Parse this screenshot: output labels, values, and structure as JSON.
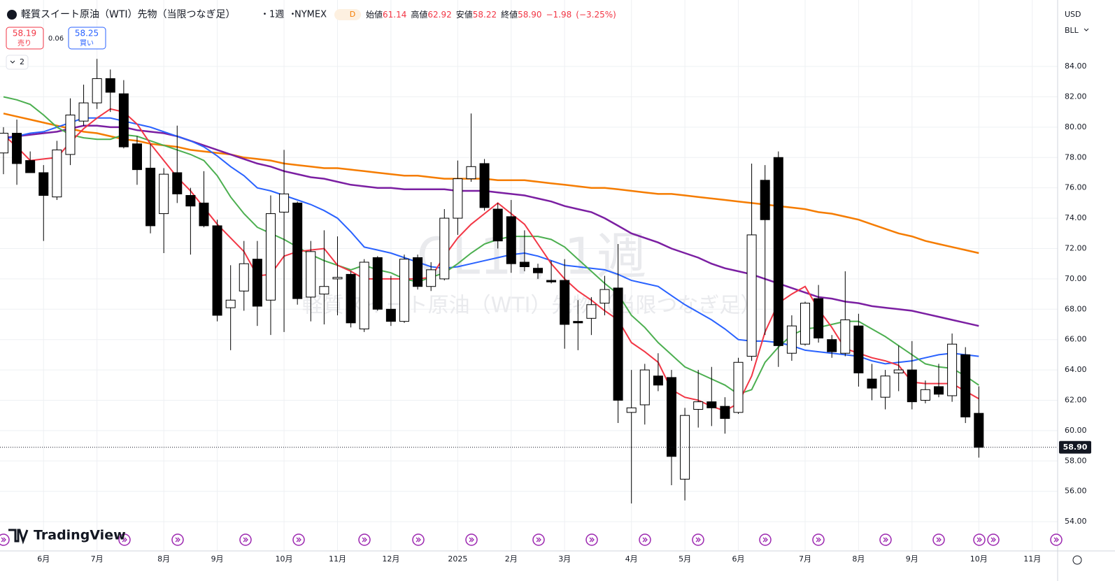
{
  "chart_data": {
    "type": "candlestick",
    "title": "軽質スイート原油（WTI）先物（当限つなぎ足）",
    "interval": "1週",
    "exchange": "NYMEX",
    "badge": "D",
    "ohlc_header": [
      {
        "label": "始値",
        "value": "61.14"
      },
      {
        "label": "高値",
        "value": "62.92"
      },
      {
        "label": "安値",
        "value": "58.22"
      },
      {
        "label": "終値",
        "value": "58.90"
      }
    ],
    "change": "−1.98",
    "change_pct": "(−3.25%)",
    "sell_price": "58.19",
    "sell_label": "売り",
    "spread": "0.06",
    "buy_price": "58.25",
    "buy_label": "買い",
    "indicators_count": "2",
    "currency": "USD",
    "unit": "BLL",
    "watermark": "CL1!, 1週",
    "brand": "TradingView",
    "last_price": {
      "value": 58.9,
      "label": "58.90"
    },
    "up_color": "#ffffff",
    "down_color": "#000000",
    "grid": true,
    "open": [
      78.3,
      79.6,
      77.8,
      77.0,
      75.4,
      78.2,
      80.4,
      81.6,
      83.2,
      82.2,
      78.9,
      77.3,
      74.3,
      77.0,
      75.5,
      75.0,
      73.5,
      68.1,
      69.2,
      71.3,
      68.6,
      74.4,
      75.0,
      68.8,
      69.0,
      70.0,
      70.3,
      66.7,
      71.4,
      68.0,
      67.2,
      71.4,
      69.5,
      70.0,
      74.0,
      76.6,
      77.6,
      74.6,
      74.1,
      71.1,
      70.7,
      69.9,
      69.9,
      67.2,
      67.4,
      68.4,
      69.4,
      61.2,
      61.7,
      63.6,
      63.5,
      56.8,
      61.4,
      61.9,
      61.6,
      61.2,
      64.9,
      76.5,
      78.0,
      65.1,
      65.7,
      68.7,
      66.0,
      65.1,
      66.9,
      63.4,
      62.2,
      63.8,
      64.0,
      62.0,
      62.9,
      62.3,
      65.0,
      61.14
    ],
    "high": [
      80.0,
      80.5,
      78.4,
      77.5,
      79.1,
      81.9,
      82.8,
      84.5,
      83.8,
      83.1,
      79.4,
      78.9,
      77.3,
      80.1,
      76.0,
      77.1,
      73.9,
      70.9,
      72.5,
      72.5,
      75.5,
      78.5,
      75.1,
      72.5,
      73.2,
      72.8,
      70.5,
      71.3,
      71.5,
      70.2,
      71.6,
      71.6,
      71.1,
      74.6,
      77.8,
      80.9,
      77.9,
      75.0,
      75.2,
      73.2,
      71.0,
      71.2,
      71.3,
      68.6,
      68.8,
      70.2,
      72.3,
      64.0,
      64.4,
      65.1,
      64.0,
      61.5,
      64.0,
      64.2,
      62.2,
      64.8,
      77.6,
      77.5,
      78.4,
      67.6,
      68.5,
      69.6,
      66.3,
      70.5,
      67.7,
      64.4,
      64.0,
      65.6,
      65.9,
      63.3,
      64.4,
      66.4,
      65.5,
      62.92
    ],
    "low": [
      76.9,
      76.2,
      77.0,
      72.5,
      75.2,
      77.5,
      80.1,
      81.2,
      81.0,
      78.6,
      76.2,
      73.0,
      71.7,
      75.0,
      71.6,
      73.4,
      67.2,
      65.3,
      67.9,
      66.9,
      66.3,
      66.5,
      68.3,
      67.2,
      67.0,
      67.6,
      66.8,
      66.5,
      67.9,
      66.9,
      67.1,
      69.3,
      69.2,
      69.9,
      72.9,
      76.4,
      74.5,
      72.0,
      70.4,
      70.5,
      70.0,
      69.7,
      65.4,
      65.3,
      66.3,
      67.6,
      60.5,
      55.2,
      60.4,
      62.6,
      56.4,
      55.4,
      60.2,
      60.3,
      59.8,
      61.1,
      64.6,
      66.3,
      64.2,
      64.6,
      65.6,
      65.8,
      64.8,
      64.9,
      62.9,
      62.0,
      61.4,
      62.6,
      61.4,
      61.8,
      62.2,
      61.9,
      60.5,
      58.22
    ],
    "close": [
      79.6,
      77.6,
      77.0,
      75.5,
      78.5,
      80.8,
      81.6,
      83.2,
      82.3,
      78.7,
      77.2,
      73.5,
      76.9,
      75.6,
      74.8,
      73.5,
      67.6,
      68.6,
      71.0,
      68.2,
      74.3,
      75.6,
      68.7,
      71.8,
      69.5,
      70.1,
      67.1,
      71.1,
      68.0,
      67.2,
      71.3,
      69.5,
      70.6,
      74.0,
      76.6,
      77.4,
      74.7,
      72.5,
      71.0,
      70.8,
      70.4,
      69.8,
      67.0,
      67.1,
      68.3,
      69.3,
      62.0,
      61.5,
      64.0,
      63.0,
      58.3,
      61.0,
      61.9,
      61.5,
      60.8,
      64.5,
      72.9,
      73.9,
      65.6,
      66.9,
      68.4,
      66.1,
      65.2,
      67.3,
      63.8,
      62.8,
      63.6,
      64.0,
      61.9,
      62.7,
      62.4,
      65.7,
      60.9,
      58.9
    ],
    "series": [
      {
        "color": "#f57c00",
        "values": [
          80.9,
          80.7,
          80.5,
          80.3,
          80.1,
          79.9,
          79.7,
          79.6,
          79.4,
          79.2,
          79.1,
          78.9,
          78.8,
          78.7,
          78.5,
          78.4,
          78.3,
          78.2,
          78.0,
          77.9,
          77.8,
          77.6,
          77.5,
          77.4,
          77.3,
          77.3,
          77.2,
          77.1,
          77.0,
          76.9,
          76.8,
          76.8,
          76.7,
          76.6,
          76.6,
          76.6,
          76.6,
          76.5,
          76.5,
          76.5,
          76.4,
          76.3,
          76.2,
          76.1,
          76.0,
          76.0,
          75.9,
          75.8,
          75.7,
          75.6,
          75.6,
          75.5,
          75.4,
          75.3,
          75.2,
          75.1,
          75.0,
          74.9,
          74.8,
          74.7,
          74.6,
          74.4,
          74.3,
          74.1,
          73.9,
          73.6,
          73.3,
          73.0,
          72.8,
          72.5,
          72.3,
          72.1,
          71.9,
          71.7
        ]
      },
      {
        "color": "#7b1fa2",
        "values": [
          79.3,
          79.4,
          79.5,
          79.6,
          79.7,
          79.9,
          80.1,
          80.1,
          80.0,
          80.0,
          79.8,
          79.7,
          79.6,
          79.4,
          79.1,
          78.8,
          78.5,
          78.2,
          77.9,
          77.6,
          77.4,
          77.1,
          76.9,
          76.7,
          76.6,
          76.4,
          76.2,
          76.1,
          76.0,
          76.0,
          75.9,
          75.9,
          75.9,
          75.9,
          75.8,
          75.8,
          75.8,
          75.7,
          75.6,
          75.5,
          75.3,
          75.1,
          74.8,
          74.6,
          74.4,
          74.0,
          73.5,
          73.0,
          72.7,
          72.4,
          72.0,
          71.7,
          71.4,
          71.0,
          70.7,
          70.5,
          70.3,
          70.0,
          69.7,
          69.4,
          69.1,
          68.8,
          68.7,
          68.5,
          68.4,
          68.2,
          68.1,
          68.0,
          67.9,
          67.7,
          67.5,
          67.3,
          67.1,
          66.9
        ]
      },
      {
        "color": "#2962ff",
        "values": [
          79.2,
          79.4,
          79.6,
          79.7,
          80.0,
          80.3,
          80.6,
          80.6,
          80.6,
          80.4,
          80.2,
          80.0,
          79.7,
          79.4,
          79.1,
          78.7,
          78.1,
          77.4,
          76.8,
          76.0,
          75.8,
          75.5,
          75.2,
          74.9,
          74.5,
          74.0,
          73.1,
          72.1,
          71.9,
          71.7,
          71.4,
          71.1,
          70.8,
          70.7,
          70.8,
          71.0,
          71.2,
          71.4,
          71.6,
          71.7,
          71.5,
          71.2,
          70.9,
          70.8,
          70.7,
          70.6,
          70.3,
          69.9,
          69.7,
          69.5,
          68.9,
          68.3,
          67.8,
          67.3,
          66.7,
          66.0,
          65.9,
          65.9,
          65.8,
          65.6,
          65.3,
          65.2,
          65.1,
          65.0,
          64.9,
          64.6,
          64.4,
          64.5,
          64.6,
          64.8,
          65.0,
          65.1,
          65.0,
          64.9
        ]
      },
      {
        "color": "#4caf50",
        "values": [
          82.0,
          81.8,
          81.5,
          80.8,
          80.0,
          79.5,
          79.3,
          79.2,
          79.2,
          79.5,
          79.4,
          79.1,
          78.8,
          78.5,
          78.2,
          77.8,
          76.8,
          75.4,
          74.3,
          73.4,
          73.0,
          72.6,
          72.1,
          71.6,
          71.2,
          70.9,
          70.6,
          70.9,
          70.6,
          70.4,
          70.0,
          69.8,
          70.1,
          70.4,
          71.0,
          71.7,
          72.3,
          72.6,
          72.8,
          72.8,
          72.8,
          72.6,
          72.1,
          71.3,
          70.5,
          69.7,
          69.0,
          67.6,
          66.8,
          65.8,
          65.0,
          64.2,
          63.8,
          63.4,
          63.0,
          62.4,
          62.7,
          64.5,
          65.5,
          66.3,
          66.7,
          66.8,
          67.0,
          67.2,
          67.2,
          66.7,
          66.2,
          65.6,
          65.0,
          64.4,
          64.2,
          64.1,
          63.6,
          63.0
        ]
      },
      {
        "color": "#f23645",
        "values": [
          79.5,
          78.7,
          77.8,
          77.9,
          78.0,
          79.0,
          79.9,
          80.6,
          81.2,
          81.0,
          80.2,
          78.9,
          77.8,
          76.7,
          75.8,
          74.7,
          73.6,
          72.7,
          71.8,
          70.2,
          70.3,
          71.5,
          71.8,
          71.9,
          72.0,
          70.9,
          70.5,
          70.0,
          70.0,
          70.0,
          70.0,
          70.0,
          70.1,
          71.5,
          72.7,
          73.6,
          74.3,
          75.0,
          74.3,
          73.6,
          72.3,
          71.0,
          70.0,
          69.2,
          68.6,
          67.9,
          67.3,
          65.8,
          65.2,
          64.5,
          62.7,
          62.2,
          62.0,
          61.6,
          61.3,
          61.8,
          63.6,
          66.5,
          68.4,
          69.0,
          69.5,
          68.0,
          66.8,
          65.4,
          65.1,
          64.8,
          64.6,
          64.3,
          63.2,
          63.1,
          63.1,
          63.1,
          62.6,
          62.1
        ]
      }
    ],
    "xlim": [
      -0.26,
      78.9
    ],
    "xticks": [
      {
        "value": 3,
        "label": "6月"
      },
      {
        "value": 7,
        "label": "7月"
      },
      {
        "value": 12,
        "label": "8月"
      },
      {
        "value": 16,
        "label": "9月"
      },
      {
        "value": 21,
        "label": "10月"
      },
      {
        "value": 25,
        "label": "11月"
      },
      {
        "value": 29,
        "label": "12月"
      },
      {
        "value": 34,
        "label": "2025"
      },
      {
        "value": 38,
        "label": "2月"
      },
      {
        "value": 42,
        "label": "3月"
      },
      {
        "value": 47,
        "label": "4月"
      },
      {
        "value": 51,
        "label": "5月"
      },
      {
        "value": 55,
        "label": "6月"
      },
      {
        "value": 60,
        "label": "7月"
      },
      {
        "value": 64,
        "label": "8月"
      },
      {
        "value": 68,
        "label": "9月"
      },
      {
        "value": 73,
        "label": "10月"
      },
      {
        "value": 77,
        "label": "11月"
      }
    ],
    "ylim": [
      52.07,
      88.38
    ],
    "yticks": [
      {
        "value": 54,
        "label": "54.00"
      },
      {
        "value": 56,
        "label": "56.00"
      },
      {
        "value": 58,
        "label": "58.00"
      },
      {
        "value": 60,
        "label": "60.00"
      },
      {
        "value": 62,
        "label": "62.00"
      },
      {
        "value": 64,
        "label": "64.00"
      },
      {
        "value": 66,
        "label": "66.00"
      },
      {
        "value": 68,
        "label": "68.00"
      },
      {
        "value": 70,
        "label": "70.00"
      },
      {
        "value": 72,
        "label": "72.00"
      },
      {
        "value": 74,
        "label": "74.00"
      },
      {
        "value": 76,
        "label": "76.00"
      },
      {
        "value": 78,
        "label": "78.00"
      },
      {
        "value": 80,
        "label": "80.00"
      },
      {
        "value": 82,
        "label": "82.00"
      },
      {
        "value": 84,
        "label": "84.00"
      }
    ]
  }
}
